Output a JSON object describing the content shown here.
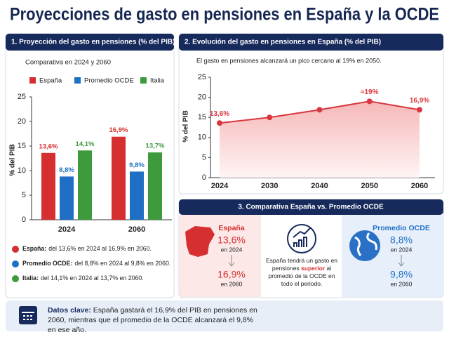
{
  "title": "Proyecciones de gasto en pensiones en España y la OCDE",
  "chart_data": [
    {
      "type": "bar",
      "title": "1. Proyección del gasto en pensiones (% del PIB)",
      "subtitle": "Comparativa en 2024 y 2060",
      "ylabel": "% del PIB",
      "categories": [
        "2024",
        "2060"
      ],
      "series": [
        {
          "name": "España",
          "color": "#d62f2f",
          "values": [
            13.6,
            16.9
          ],
          "value_labels": [
            "13,6%",
            "16,9%"
          ]
        },
        {
          "name": "Promedio OCDE",
          "color": "#1f6fc5",
          "values": [
            8.8,
            9.8
          ],
          "value_labels": [
            "8,8%",
            "9,8%"
          ]
        },
        {
          "name": "Italia",
          "color": "#3d9a3d",
          "values": [
            14.1,
            13.7
          ],
          "value_labels": [
            "14,1%",
            "13,7%"
          ]
        }
      ],
      "ylim": [
        0,
        25
      ],
      "yticks": [
        0,
        5,
        10,
        15,
        20,
        25
      ],
      "notes": [
        {
          "label": "España:",
          "text": "del 13,6% en 2024 al 16,9% en 2060."
        },
        {
          "label": "Promedio OCDE:",
          "text": "del 8,8% en 2024 al 9,8% en 2060."
        },
        {
          "label": "Italia:",
          "text": "del 14,1% en 2024 al 13,7% en 2060."
        }
      ]
    },
    {
      "type": "line",
      "title": "2. Evolución del gasto en pensiones en España (% del PIB)",
      "subtitle": "El gasto en pensiones alcanzará un pico cercano al 19% en 2050.",
      "ylabel": "% del PIB",
      "categories": [
        "2024",
        "2030",
        "2040",
        "2050",
        "2060"
      ],
      "values": [
        13.6,
        15,
        16.9,
        19,
        16.9
      ],
      "value_labels": [
        "13,6%",
        null,
        null,
        "≈19%",
        "16,9%"
      ],
      "color": "#d9363e",
      "ylim": [
        0,
        25
      ],
      "yticks": [
        0,
        5,
        10,
        15,
        20,
        25
      ]
    }
  ],
  "comparison": {
    "title": "3. Comparativa España vs. Promedio OCDE",
    "spain": {
      "name": "España",
      "value_2024": "13,6%",
      "label_2024": "en 2024",
      "value_2060": "16,9%",
      "label_2060": "en 2060"
    },
    "middle": {
      "before": "España tendrá un gasto en pensiones",
      "emphasis": "superior",
      "after": "al promedio de la OCDE en todo el periodo."
    },
    "oecd": {
      "name": "Promedio OCDE",
      "value_2024": "8,8%",
      "label_2024": "en 2024",
      "value_2060": "9,8%",
      "label_2060": "en 2060"
    }
  },
  "key_data": {
    "label": "Datos clave:",
    "text": "España gastará el 16,9% del PIB en pensiones en 2060, mientras que el promedio de la OCDE alcanzará el 9,8% en ese año."
  }
}
